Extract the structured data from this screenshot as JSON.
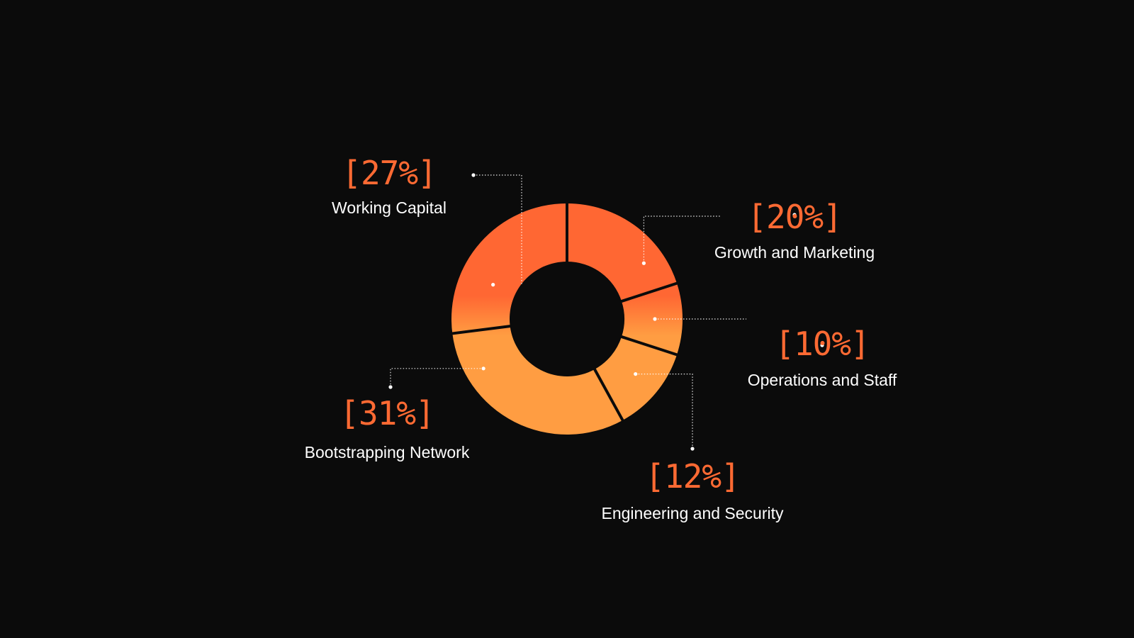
{
  "theme": {
    "background": "#0b0b0b",
    "accent": "#ff6a33",
    "gradient_top": "#ff6733",
    "gradient_bottom": "#ff9d42",
    "label_color": "#ffffff",
    "separator_color": "#0b0b0b",
    "leader_color": "#ffffff"
  },
  "chart_data": {
    "type": "pie",
    "variant": "donut",
    "start_angle_deg": 90,
    "direction": "clockwise",
    "slices": [
      {
        "label": "Growth and Marketing",
        "value": 20,
        "value_text": "[20%]"
      },
      {
        "label": "Operations and Staff",
        "value": 10,
        "value_text": "[10%]"
      },
      {
        "label": "Engineering and Security",
        "value": 12,
        "value_text": "[12%]"
      },
      {
        "label": "Bootstrapping Network",
        "value": 31,
        "value_text": "[31%]"
      },
      {
        "label": "Working Capital",
        "value": 27,
        "value_text": "[27%]"
      }
    ]
  }
}
